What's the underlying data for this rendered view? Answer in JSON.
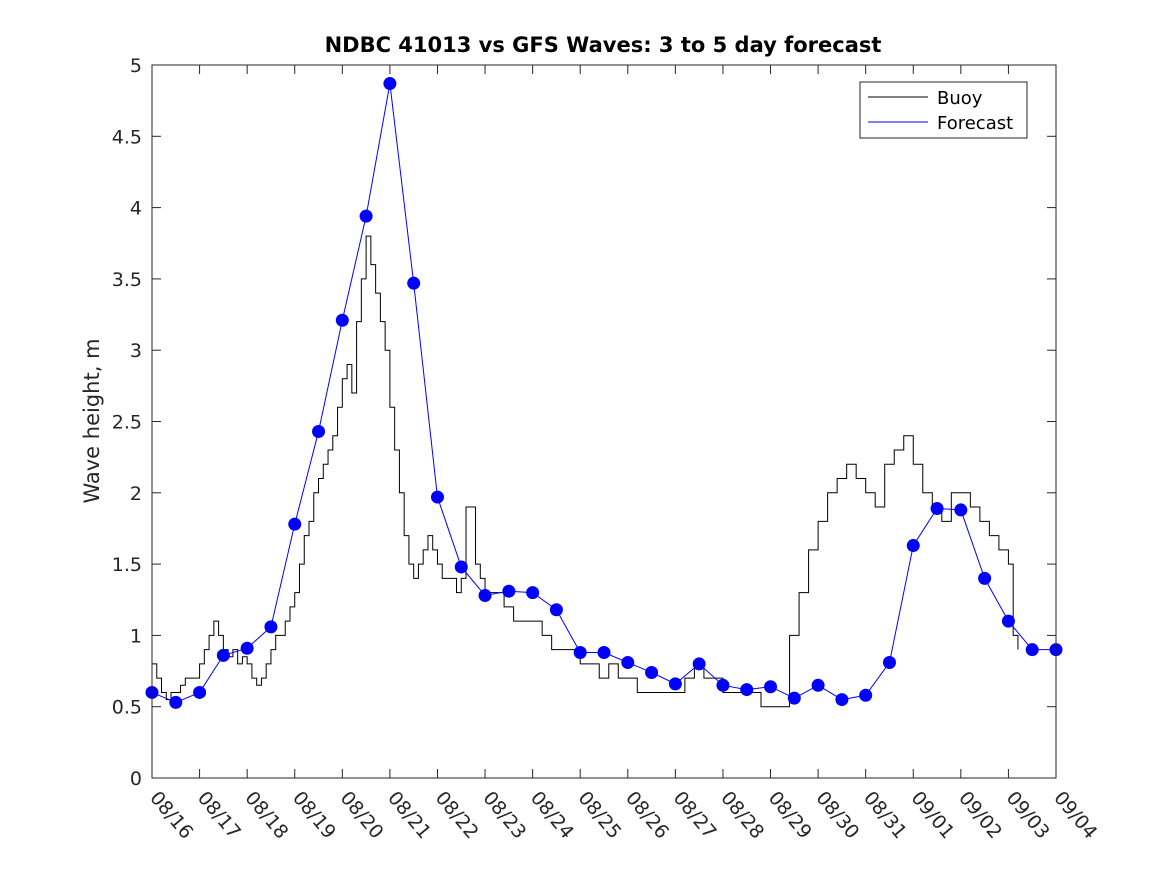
{
  "chart_data": {
    "type": "line",
    "title": "NDBC 41013 vs GFS Waves: 3 to 5 day forecast",
    "xlabel": "",
    "ylabel": "Wave height, m",
    "xlim": [
      0,
      19
    ],
    "ylim": [
      0,
      5
    ],
    "x_tick_labels": [
      "08/16",
      "08/17",
      "08/18",
      "08/19",
      "08/20",
      "08/21",
      "08/22",
      "08/23",
      "08/24",
      "08/25",
      "08/26",
      "08/27",
      "08/28",
      "08/29",
      "08/30",
      "08/31",
      "09/01",
      "09/02",
      "09/03",
      "09/04"
    ],
    "y_tick_labels": [
      "0",
      "0.5",
      "1",
      "1.5",
      "2",
      "2.5",
      "3",
      "3.5",
      "4",
      "4.5",
      "5"
    ],
    "legend_position": "top-right",
    "colors": {
      "buoy": "#000000",
      "forecast": "#0000ff",
      "axis": "#262626"
    },
    "series": [
      {
        "name": "Buoy",
        "x": [
          0,
          0.1,
          0.2,
          0.3,
          0.4,
          0.5,
          0.6,
          0.7,
          0.8,
          0.9,
          1.0,
          1.1,
          1.2,
          1.3,
          1.4,
          1.5,
          1.6,
          1.7,
          1.8,
          1.9,
          2.0,
          2.1,
          2.2,
          2.3,
          2.4,
          2.5,
          2.6,
          2.7,
          2.8,
          2.9,
          3.0,
          3.1,
          3.2,
          3.3,
          3.4,
          3.5,
          3.6,
          3.7,
          3.8,
          3.9,
          4.0,
          4.1,
          4.2,
          4.3,
          4.4,
          4.5,
          4.6,
          4.7,
          4.8,
          4.9,
          5.0,
          5.1,
          5.2,
          5.3,
          5.4,
          5.5,
          5.6,
          5.7,
          5.8,
          5.9,
          6.0,
          6.1,
          6.2,
          6.3,
          6.4,
          6.5,
          6.6,
          6.7,
          6.8,
          6.9,
          7.0,
          7.2,
          7.4,
          7.6,
          7.8,
          8.0,
          8.2,
          8.4,
          8.6,
          8.8,
          9.0,
          9.2,
          9.4,
          9.6,
          9.8,
          10.0,
          10.2,
          10.4,
          10.6,
          10.8,
          11.0,
          11.2,
          11.4,
          11.6,
          11.8,
          12.0,
          12.2,
          12.4,
          12.6,
          12.8,
          13.0,
          13.2,
          13.4,
          13.6,
          13.8,
          14.0,
          14.2,
          14.4,
          14.6,
          14.8,
          15.0,
          15.2,
          15.4,
          15.6,
          15.8,
          16.0,
          16.2,
          16.4,
          16.6,
          16.8,
          17.0,
          17.2,
          17.4,
          17.6,
          17.8,
          18.0,
          18.1,
          18.2
        ],
        "values": [
          0.8,
          0.7,
          0.6,
          0.55,
          0.6,
          0.6,
          0.65,
          0.7,
          0.7,
          0.7,
          0.8,
          0.9,
          1.0,
          1.1,
          1.0,
          0.9,
          0.85,
          0.9,
          0.8,
          0.85,
          0.8,
          0.7,
          0.65,
          0.7,
          0.8,
          0.9,
          1.0,
          1.0,
          1.1,
          1.2,
          1.3,
          1.5,
          1.7,
          1.8,
          2.0,
          2.1,
          2.2,
          2.3,
          2.4,
          2.6,
          2.8,
          2.9,
          2.7,
          3.2,
          3.5,
          3.8,
          3.6,
          3.4,
          3.2,
          3.0,
          2.6,
          2.3,
          2.0,
          1.7,
          1.5,
          1.4,
          1.5,
          1.6,
          1.7,
          1.6,
          1.5,
          1.4,
          1.4,
          1.4,
          1.3,
          1.4,
          1.9,
          1.9,
          1.5,
          1.4,
          1.3,
          1.3,
          1.2,
          1.1,
          1.1,
          1.1,
          1.0,
          0.9,
          0.9,
          0.9,
          0.8,
          0.8,
          0.7,
          0.8,
          0.7,
          0.7,
          0.6,
          0.6,
          0.6,
          0.6,
          0.6,
          0.7,
          0.8,
          0.7,
          0.7,
          0.6,
          0.6,
          0.6,
          0.6,
          0.5,
          0.5,
          0.5,
          1.0,
          1.3,
          1.6,
          1.8,
          2.0,
          2.1,
          2.2,
          2.1,
          2.0,
          1.9,
          2.2,
          2.3,
          2.4,
          2.2,
          2.0,
          1.9,
          1.8,
          2.0,
          2.0,
          1.9,
          1.8,
          1.7,
          1.6,
          1.5,
          1.0,
          0.9
        ]
      },
      {
        "name": "Forecast",
        "x": [
          0,
          0.5,
          1.0,
          1.5,
          2.0,
          2.5,
          3.0,
          3.5,
          4.0,
          4.5,
          5.0,
          5.5,
          6.0,
          6.5,
          7.0,
          7.5,
          8.0,
          8.5,
          9.0,
          9.5,
          10.0,
          10.5,
          11.0,
          11.5,
          12.0,
          12.5,
          13.0,
          13.5,
          14.0,
          14.5,
          15.0,
          15.5,
          16.0,
          16.5,
          17.0,
          17.5,
          18.0,
          18.5,
          19.0
        ],
        "values": [
          0.6,
          0.53,
          0.6,
          0.86,
          0.91,
          1.06,
          1.78,
          2.43,
          3.21,
          3.94,
          4.87,
          3.47,
          1.97,
          1.48,
          1.28,
          1.31,
          1.3,
          1.18,
          0.88,
          0.88,
          0.81,
          0.74,
          0.66,
          0.8,
          0.65,
          0.62,
          0.64,
          0.56,
          0.65,
          0.55,
          0.58,
          0.81,
          1.63,
          1.89,
          1.88,
          1.4,
          1.1,
          0.9,
          0.9
        ]
      }
    ]
  }
}
